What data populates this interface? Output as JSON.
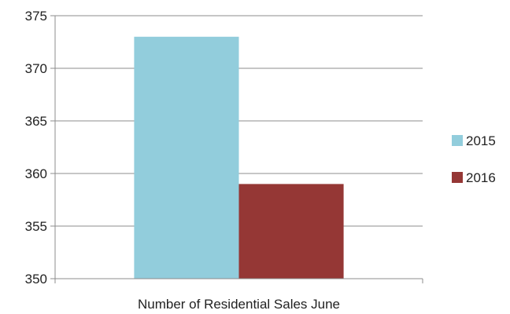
{
  "chart_data": {
    "type": "bar",
    "categories": [
      "Number of Residential Sales June"
    ],
    "series": [
      {
        "name": "2015",
        "values": [
          373
        ],
        "color": "#92CDDC"
      },
      {
        "name": "2016",
        "values": [
          359
        ],
        "color": "#953735"
      }
    ],
    "title": "",
    "xlabel": "",
    "ylabel": "",
    "ylim": [
      350,
      375
    ],
    "yticks": [
      "350",
      "355",
      "360",
      "365",
      "370",
      "375"
    ],
    "grid": true,
    "legend_position": "right"
  }
}
